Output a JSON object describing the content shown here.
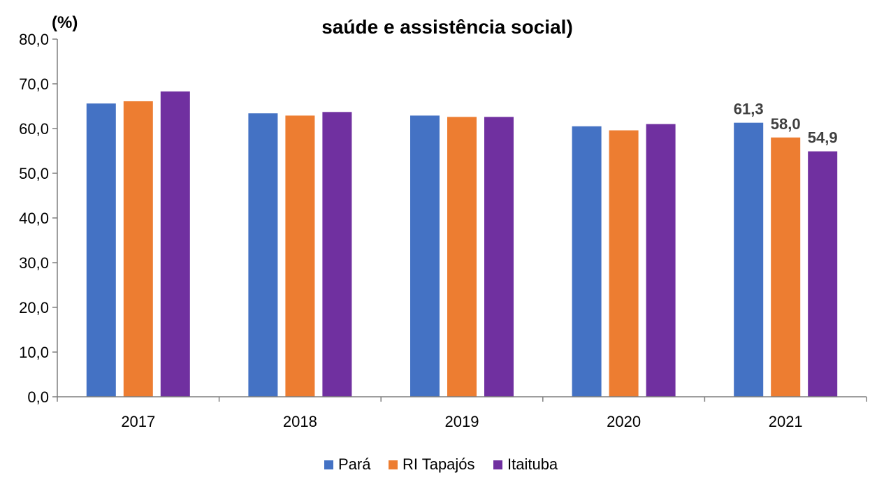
{
  "chart_data": {
    "type": "bar",
    "title": "saúde e assistência social)",
    "ylabel": "(%)",
    "xlabel": "",
    "categories": [
      "2017",
      "2018",
      "2019",
      "2020",
      "2021"
    ],
    "ylim": [
      0,
      80
    ],
    "yticks": [
      "0,0",
      "10,0",
      "20,0",
      "30,0",
      "40,0",
      "50,0",
      "60,0",
      "70,0",
      "80,0"
    ],
    "grid": false,
    "legend_position": "bottom",
    "series": [
      {
        "name": "Pará",
        "color": "#4472C4",
        "values": [
          65.6,
          63.4,
          62.9,
          60.5,
          61.3
        ],
        "data_labels": [
          "",
          "",
          "",
          "",
          "61,3"
        ]
      },
      {
        "name": "RI Tapajós",
        "color": "#ED7D31",
        "values": [
          66.1,
          62.9,
          62.6,
          59.6,
          58.0
        ],
        "data_labels": [
          "",
          "",
          "",
          "",
          "58,0"
        ]
      },
      {
        "name": "Itaituba",
        "color": "#7030A0",
        "values": [
          68.3,
          63.7,
          62.6,
          61.0,
          54.9
        ],
        "data_labels": [
          "",
          "",
          "",
          "",
          "54,9"
        ]
      }
    ]
  }
}
